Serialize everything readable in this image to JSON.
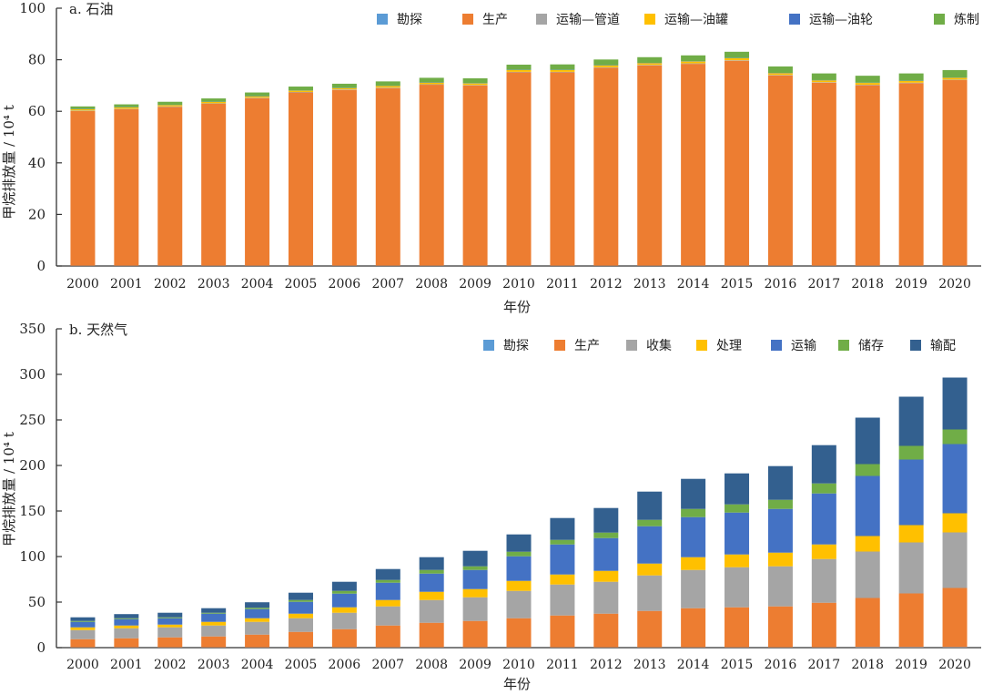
{
  "chart_data": [
    {
      "type": "bar",
      "stacked": true,
      "title": "a. 石油",
      "xlabel": "年份",
      "ylabel": "甲烷排放量 / 10⁴ t",
      "ylim": [
        0,
        100
      ],
      "yticks": [
        0,
        20,
        40,
        60,
        80,
        100
      ],
      "legend_position": "top-right",
      "categories": [
        "2000",
        "2001",
        "2002",
        "2003",
        "2004",
        "2005",
        "2006",
        "2007",
        "2008",
        "2009",
        "2010",
        "2011",
        "2012",
        "2013",
        "2014",
        "2015",
        "2016",
        "2017",
        "2018",
        "2019",
        "2020"
      ],
      "series": [
        {
          "name": "勘探",
          "color": "#5B9BD5",
          "values": [
            0.1,
            0.1,
            0.1,
            0.1,
            0.1,
            0.1,
            0.1,
            0.1,
            0.1,
            0.1,
            0.1,
            0.1,
            0.1,
            0.1,
            0.1,
            0.1,
            0.1,
            0.1,
            0.1,
            0.1,
            0.1
          ]
        },
        {
          "name": "生产",
          "color": "#ED7D31",
          "values": [
            60.0,
            60.7,
            61.6,
            62.8,
            65.0,
            67.2,
            68.2,
            68.9,
            70.2,
            69.9,
            75.0,
            75.0,
            76.8,
            77.7,
            78.3,
            79.5,
            73.8,
            71.0,
            70.0,
            70.8,
            72.0
          ]
        },
        {
          "name": "运输—管道",
          "color": "#A5A5A5",
          "values": [
            0.2,
            0.2,
            0.2,
            0.2,
            0.2,
            0.2,
            0.2,
            0.2,
            0.2,
            0.2,
            0.2,
            0.2,
            0.2,
            0.2,
            0.2,
            0.2,
            0.2,
            0.2,
            0.2,
            0.2,
            0.2
          ]
        },
        {
          "name": "运输—油罐",
          "color": "#FFC000",
          "values": [
            0.5,
            0.5,
            0.5,
            0.5,
            0.5,
            0.5,
            0.5,
            0.6,
            0.6,
            0.6,
            0.7,
            0.7,
            0.7,
            0.7,
            0.7,
            0.8,
            0.7,
            0.7,
            0.7,
            0.7,
            0.7
          ]
        },
        {
          "name": "运输—油轮",
          "color": "#4472C4",
          "values": [
            0.1,
            0.1,
            0.1,
            0.1,
            0.1,
            0.1,
            0.1,
            0.1,
            0.1,
            0.1,
            0.1,
            0.1,
            0.1,
            0.1,
            0.1,
            0.1,
            0.1,
            0.1,
            0.1,
            0.1,
            0.1
          ]
        },
        {
          "name": "炼制",
          "color": "#70AD47",
          "values": [
            1.0,
            1.1,
            1.2,
            1.3,
            1.4,
            1.5,
            1.6,
            1.7,
            1.8,
            1.9,
            2.0,
            2.1,
            2.2,
            2.2,
            2.3,
            2.4,
            2.5,
            2.6,
            2.7,
            2.8,
            2.9
          ]
        }
      ]
    },
    {
      "type": "bar",
      "stacked": true,
      "title": "b. 天然气",
      "xlabel": "年份",
      "ylabel": "甲烷排放量 / 10⁴ t",
      "ylim": [
        0,
        350
      ],
      "yticks": [
        0,
        50,
        100,
        150,
        200,
        250,
        300,
        350
      ],
      "legend_position": "top-right",
      "categories": [
        "2000",
        "2001",
        "2002",
        "2003",
        "2004",
        "2005",
        "2006",
        "2007",
        "2008",
        "2009",
        "2010",
        "2011",
        "2012",
        "2013",
        "2014",
        "2015",
        "2016",
        "2017",
        "2018",
        "2019",
        "2020"
      ],
      "series": [
        {
          "name": "勘探",
          "color": "#5B9BD5",
          "values": [
            0.3,
            0.3,
            0.3,
            0.3,
            0.3,
            0.3,
            0.3,
            0.3,
            0.3,
            0.3,
            0.3,
            0.3,
            0.3,
            0.3,
            0.3,
            0.3,
            0.3,
            0.3,
            0.5,
            0.5,
            0.5
          ]
        },
        {
          "name": "生产",
          "color": "#ED7D31",
          "values": [
            9,
            10,
            11,
            12,
            14,
            17,
            20,
            24,
            27,
            29,
            32,
            35,
            37,
            40,
            43,
            44,
            45,
            49,
            54,
            59,
            65
          ]
        },
        {
          "name": "收集",
          "color": "#A5A5A5",
          "values": [
            10,
            11,
            11,
            12,
            14,
            15,
            18,
            21,
            25,
            26,
            30,
            34,
            35,
            39,
            42,
            44,
            44,
            48,
            51,
            56,
            61
          ]
        },
        {
          "name": "处理",
          "color": "#FFC000",
          "values": [
            3,
            3,
            3,
            4,
            4,
            5,
            6,
            7,
            9,
            9,
            11,
            11,
            12,
            13,
            14,
            14,
            15,
            16,
            17,
            19,
            21
          ]
        },
        {
          "name": "运输",
          "color": "#4472C4",
          "values": [
            6,
            7,
            7,
            9,
            10,
            13,
            15,
            19,
            20,
            21,
            27,
            33,
            36,
            41,
            44,
            46,
            48,
            56,
            66,
            72,
            76
          ]
        },
        {
          "name": "储存",
          "color": "#70AD47",
          "values": [
            1,
            1,
            1,
            1,
            1.5,
            2,
            3,
            3,
            4,
            4,
            5,
            5,
            6,
            7,
            9,
            9,
            10,
            11,
            13,
            15,
            16
          ]
        },
        {
          "name": "输配",
          "color": "#33608F",
          "values": [
            4,
            4.5,
            5,
            5,
            6,
            8,
            10,
            12,
            14,
            17,
            19,
            24,
            27,
            31,
            33,
            34,
            37,
            42,
            51,
            54,
            57
          ]
        }
      ]
    }
  ]
}
